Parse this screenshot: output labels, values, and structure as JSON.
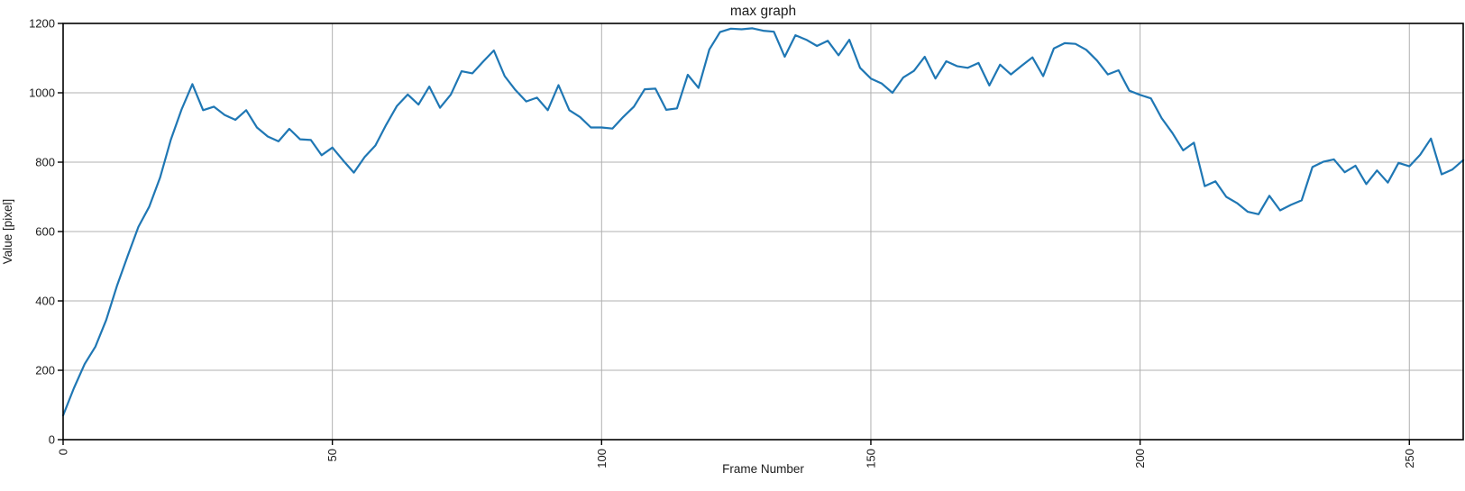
{
  "figure": {
    "background": "#ffffff"
  },
  "chart_data": {
    "type": "line",
    "title": "max graph",
    "xlabel": "Frame Number",
    "ylabel": "Value [pixel]",
    "xlim": [
      0,
      260
    ],
    "ylim": [
      0,
      1200
    ],
    "xticks": [
      0,
      50,
      100,
      150,
      200,
      250
    ],
    "yticks": [
      0,
      200,
      400,
      600,
      800,
      1000,
      1200
    ],
    "x_tick_rotation": 90,
    "grid": true,
    "legend_position": "none",
    "line_color": "#1f77b4",
    "line_width": 2.2,
    "grid_color": "#b0b0b0",
    "spine_color": "#000000",
    "text_color": "#1c1c1c",
    "x": [
      0,
      2,
      4,
      6,
      8,
      10,
      12,
      14,
      16,
      18,
      20,
      22,
      24,
      26,
      28,
      30,
      32,
      34,
      36,
      38,
      40,
      42,
      44,
      46,
      48,
      50,
      52,
      54,
      56,
      58,
      60,
      62,
      64,
      66,
      68,
      70,
      72,
      74,
      76,
      78,
      80,
      82,
      84,
      86,
      88,
      90,
      92,
      94,
      96,
      98,
      100,
      102,
      104,
      106,
      108,
      110,
      112,
      114,
      116,
      118,
      120,
      122,
      124,
      126,
      128,
      130,
      132,
      134,
      136,
      138,
      140,
      142,
      144,
      146,
      148,
      150,
      152,
      154,
      156,
      158,
      160,
      162,
      164,
      166,
      168,
      170,
      172,
      174,
      176,
      178,
      180,
      182,
      184,
      186,
      188,
      190,
      192,
      194,
      196,
      198,
      200,
      202,
      204,
      206,
      208,
      210,
      212,
      214,
      216,
      218,
      220,
      222,
      224,
      226,
      228,
      230,
      232,
      234,
      236,
      238,
      240,
      242,
      244,
      246,
      248,
      250,
      252,
      254,
      256,
      258,
      260
    ],
    "values": [
      70,
      148,
      218,
      268,
      345,
      443,
      530,
      614,
      672,
      755,
      865,
      952,
      1025,
      950,
      960,
      936,
      922,
      950,
      900,
      874,
      860,
      896,
      866,
      864,
      820,
      842,
      805,
      770,
      815,
      848,
      908,
      962,
      995,
      966,
      1018,
      957,
      995,
      1062,
      1056,
      1090,
      1122,
      1048,
      1008,
      975,
      986,
      950,
      1022,
      950,
      930,
      900,
      900,
      897,
      930,
      960,
      1010,
      1012,
      951,
      955,
      1052,
      1014,
      1125,
      1175,
      1185,
      1183,
      1186,
      1179,
      1176,
      1104,
      1166,
      1153,
      1135,
      1150,
      1108,
      1153,
      1072,
      1041,
      1027,
      1000,
      1044,
      1063,
      1104,
      1041,
      1091,
      1077,
      1072,
      1086,
      1021,
      1081,
      1053,
      1078,
      1102,
      1048,
      1128,
      1143,
      1141,
      1124,
      1093,
      1053,
      1065,
      1006,
      994,
      984,
      927,
      884,
      834,
      856,
      731,
      745,
      700,
      682,
      657,
      650,
      703,
      661,
      677,
      690,
      786,
      801,
      808,
      771,
      790,
      737,
      776,
      741,
      798,
      788,
      821,
      868,
      765,
      779,
      806
    ]
  }
}
